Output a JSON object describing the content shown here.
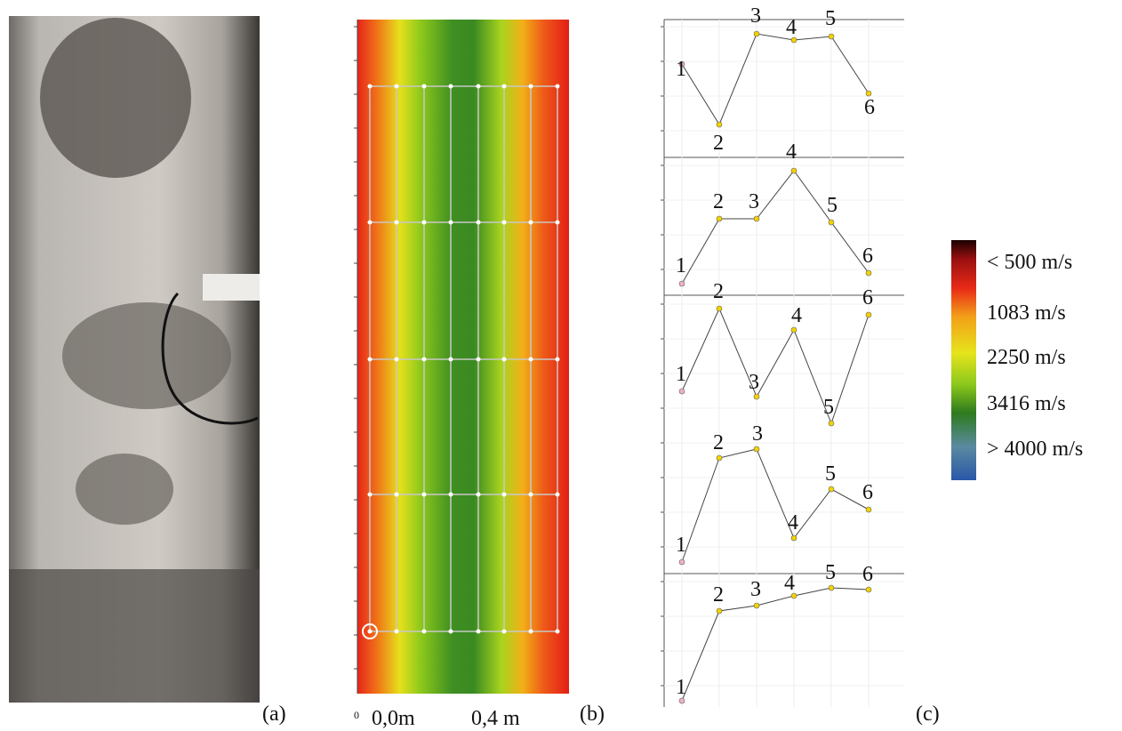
{
  "panel_a": {
    "label": "(a)"
  },
  "panel_b": {
    "label": "(b)",
    "origin_label": "0",
    "x_labels": [
      "0,0m",
      "0,4 m"
    ]
  },
  "panel_c": {
    "label": "(c)",
    "profiles": [
      {
        "point_labels": [
          "1",
          "2",
          "3",
          "4",
          "5",
          "6"
        ]
      },
      {
        "point_labels": [
          "1",
          "2",
          "3",
          "4",
          "5",
          "6"
        ]
      },
      {
        "point_labels": [
          "1",
          "2",
          "3",
          "4",
          "5",
          "6"
        ]
      },
      {
        "point_labels": [
          "1",
          "2",
          "3",
          "4",
          "5",
          "6"
        ]
      },
      {
        "point_labels": [
          "1",
          "2",
          "3",
          "4",
          "5",
          "6"
        ]
      }
    ]
  },
  "colorbar": {
    "labels": [
      "< 500 m/s",
      "1083 m/s",
      "2250 m/s",
      "3416 m/s",
      "> 4000 m/s"
    ]
  }
}
